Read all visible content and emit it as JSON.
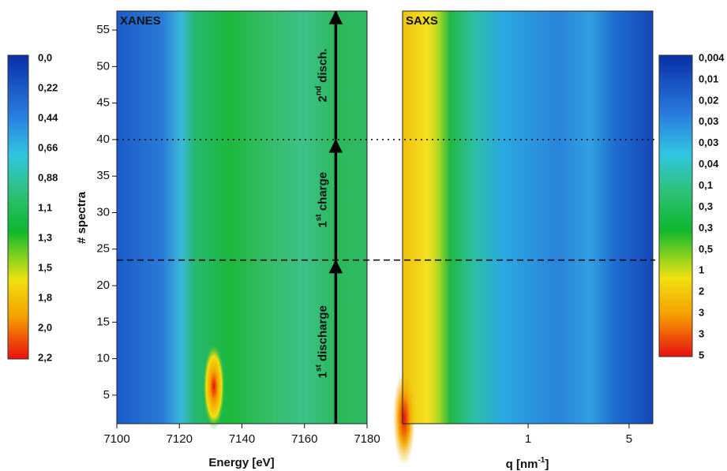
{
  "chart_data": [
    {
      "type": "heatmap",
      "title": "XANES",
      "xlabel": "Energy [eV]",
      "ylabel": "# spectra",
      "xlim": [
        7100,
        7180
      ],
      "xticks": [
        7100,
        7120,
        7140,
        7160,
        7180
      ],
      "ylim": [
        1.1,
        57.6
      ],
      "yticks": [
        5,
        10,
        15,
        20,
        25,
        30,
        35,
        40,
        45,
        50,
        55
      ],
      "colorbar_labels": [
        "0,0",
        "0,22",
        "0,44",
        "0,66",
        "0,88",
        "1,1",
        "1,3",
        "1,5",
        "1,8",
        "2,0",
        "2,2"
      ],
      "hlines": [
        {
          "value": 40,
          "style": "dotted"
        },
        {
          "value": 23.5,
          "style": "dashed"
        }
      ],
      "arrows": [
        {
          "x": 7170,
          "y_from": 1.1,
          "y_to": 23.5,
          "number": "1",
          "sup": "st",
          "text": " discharge"
        },
        {
          "x": 7170,
          "y_from": 23.5,
          "y_to": 40,
          "number": "1",
          "sup": "st",
          "text": " charge"
        },
        {
          "x": 7170,
          "y_from": 40,
          "y_to": 57.6,
          "number": "2",
          "sup": "nd",
          "text": " disch."
        }
      ]
    },
    {
      "type": "heatmap",
      "title": "SAXS",
      "xlabel": {
        "main": "q [nm",
        "sup": "-1",
        "end": "]"
      },
      "xscale": "log",
      "xlim": [
        0.135,
        7.3
      ],
      "xticks": [
        1,
        5
      ],
      "ylim": [
        1.1,
        57.6
      ],
      "colorbar_labels": [
        "0,004",
        "0,01",
        "0,02",
        "0,03",
        "0,03",
        "0,04",
        "0,1",
        "0,3",
        "0,3",
        "0,5",
        "1",
        "2",
        "3",
        "3",
        "5"
      ]
    }
  ]
}
